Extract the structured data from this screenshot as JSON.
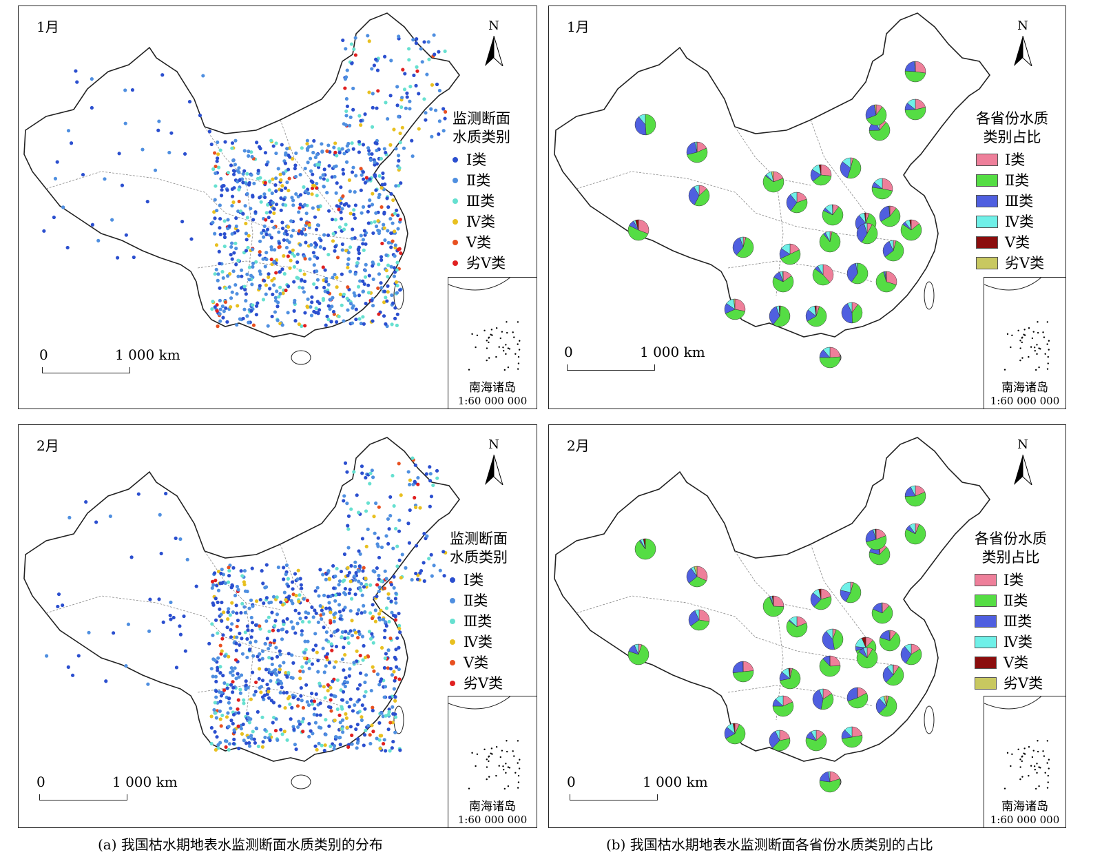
{
  "panels": {
    "a1": {
      "month": "1月"
    },
    "b1": {
      "month": "1月"
    },
    "a2": {
      "month": "2月"
    },
    "b2": {
      "month": "2月"
    }
  },
  "north": "N",
  "scale": {
    "zero": "0",
    "label": "1 000 km"
  },
  "inset": {
    "name": "南海诸岛",
    "ratio": "1:60 000 000"
  },
  "legend_points": {
    "title_line1": "监测断面",
    "title_line2": "水质类别",
    "items": [
      {
        "label": "Ⅰ类",
        "color": "#2b4fcf"
      },
      {
        "label": "Ⅱ类",
        "color": "#4f8fe0"
      },
      {
        "label": "Ⅲ类",
        "color": "#66e0d0"
      },
      {
        "label": "Ⅳ类",
        "color": "#e8c020"
      },
      {
        "label": "Ⅴ类",
        "color": "#e85020"
      },
      {
        "label": "劣Ⅴ类",
        "color": "#e02020"
      }
    ]
  },
  "legend_pies": {
    "title_line1": "各省份水质",
    "title_line2": "类别占比",
    "items": [
      {
        "label": "Ⅰ类",
        "color": "#ee7f9a"
      },
      {
        "label": "Ⅱ类",
        "color": "#55dd44"
      },
      {
        "label": "Ⅲ类",
        "color": "#4f5fe0"
      },
      {
        "label": "Ⅳ类",
        "color": "#6ff0e8"
      },
      {
        "label": "Ⅴ类",
        "color": "#8b0d0d"
      },
      {
        "label": "劣Ⅴ类",
        "color": "#c8c860"
      }
    ]
  },
  "captions": {
    "a": "(a)  我国枯水期地表水监测断面水质类别的分布",
    "b": "(b)  我国枯水期地表水监测断面各省份水质类别的占比"
  }
}
